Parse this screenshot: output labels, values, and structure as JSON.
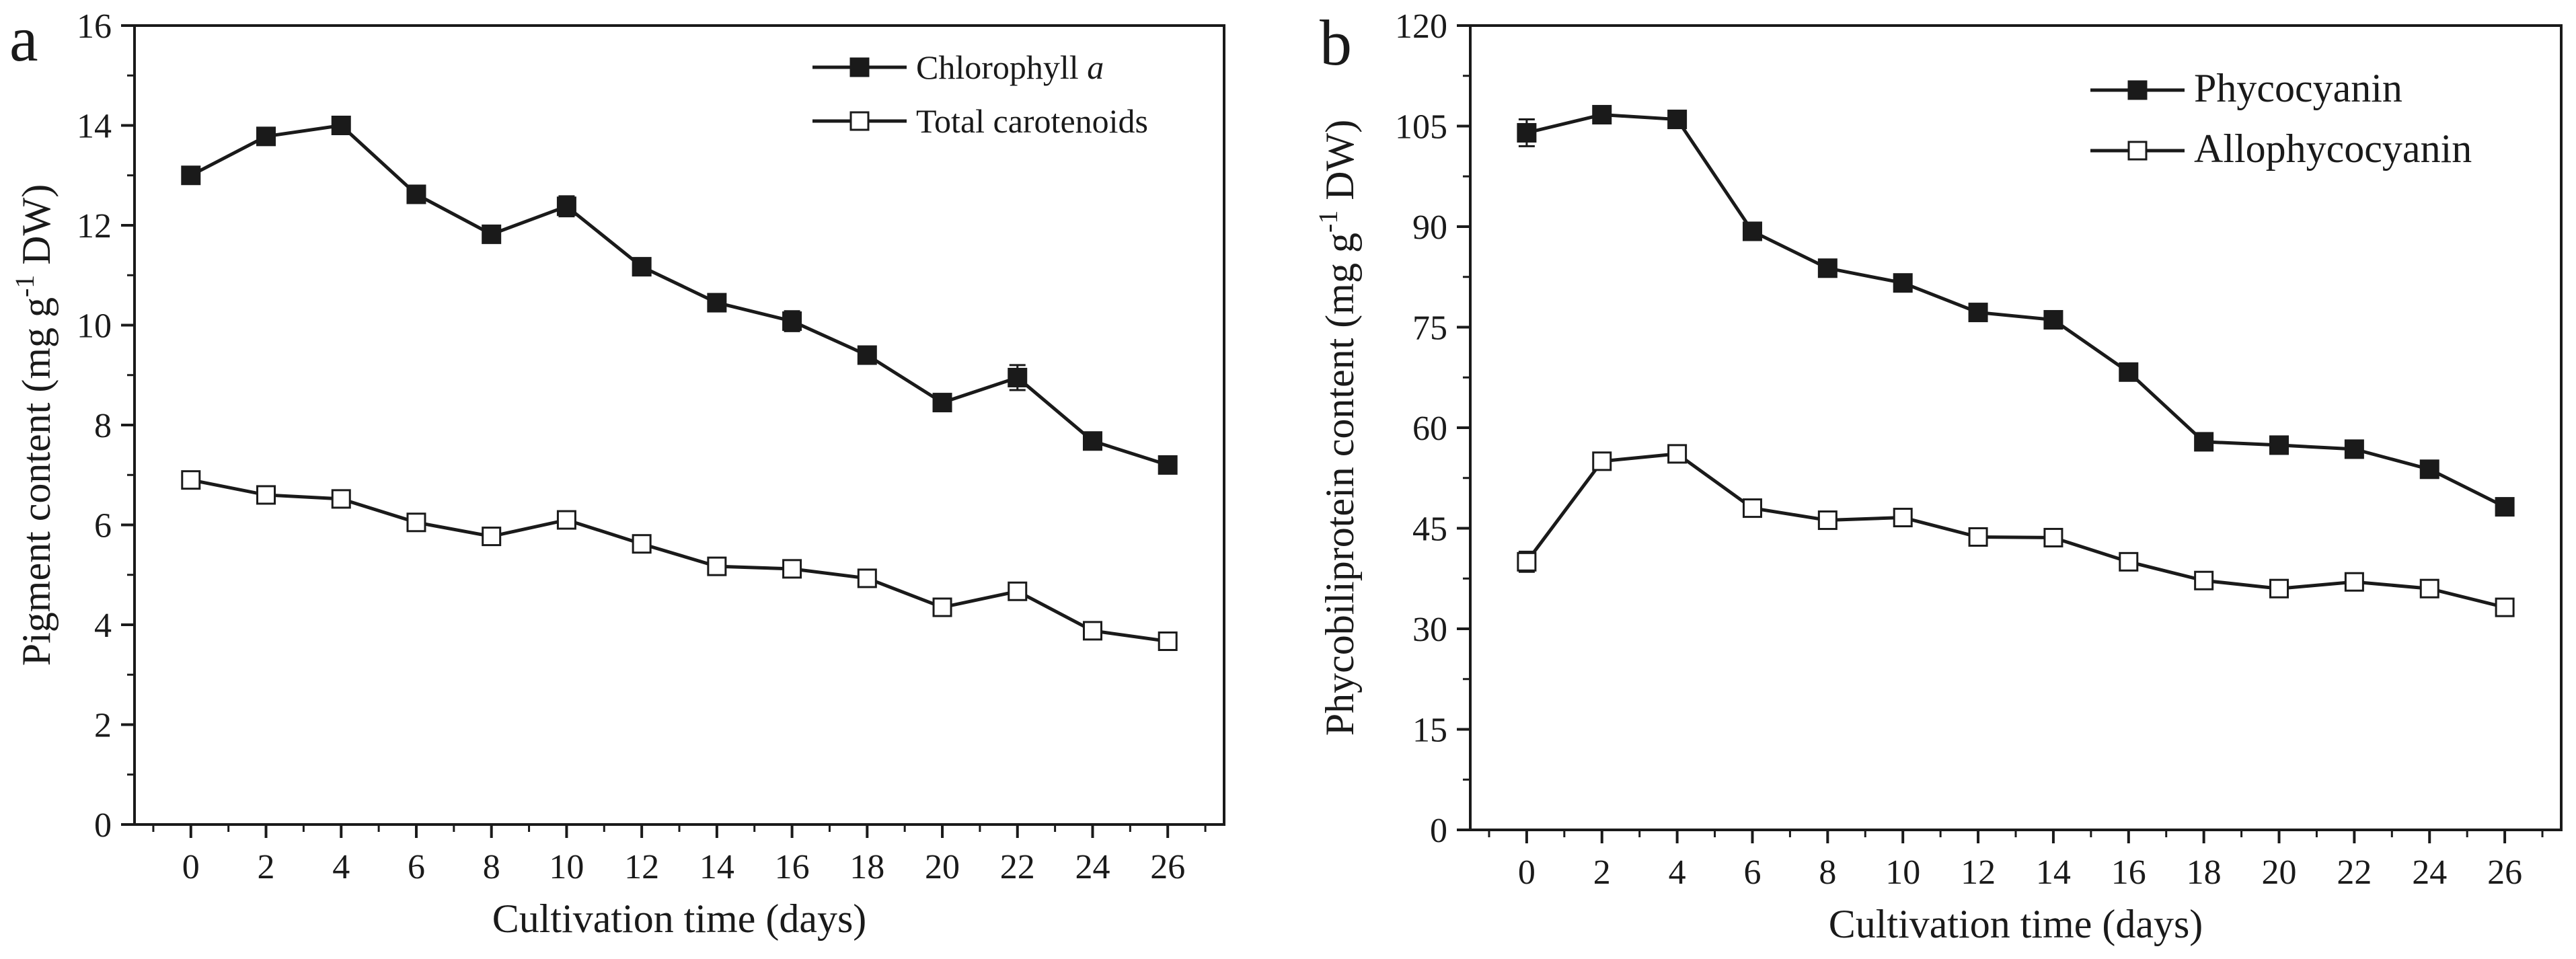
{
  "chart_data": [
    {
      "type": "line",
      "panel_label": "a",
      "xlabel": "Cultivation time (days)",
      "ylabel": "Pigment content (mg g",
      "ylabel_sup": "-1",
      "ylabel_tail": " DW)",
      "x": [
        0,
        2,
        4,
        6,
        8,
        10,
        12,
        14,
        16,
        18,
        20,
        22,
        24,
        26
      ],
      "xlim": [
        -1.5,
        27.5
      ],
      "ylim": [
        0,
        16
      ],
      "yticks": [
        0,
        2,
        4,
        6,
        8,
        10,
        12,
        14,
        16
      ],
      "xticks": [
        0,
        2,
        4,
        6,
        8,
        10,
        12,
        14,
        16,
        18,
        20,
        22,
        24,
        26
      ],
      "grid": false,
      "legend_position": "top-right",
      "series": [
        {
          "name": "Chlorophyll ",
          "name_italic": "a",
          "marker": "filled-square",
          "values": [
            13.0,
            13.78,
            14.0,
            12.62,
            11.82,
            12.38,
            11.17,
            10.45,
            10.08,
            9.4,
            8.45,
            8.95,
            7.68,
            7.2
          ],
          "errors": [
            0.05,
            0.08,
            0.15,
            0.05,
            0.05,
            0.2,
            0.05,
            0.05,
            0.2,
            0.1,
            0.08,
            0.25,
            0.05,
            0.05
          ]
        },
        {
          "name": "Total carotenoids",
          "marker": "open-square",
          "values": [
            6.9,
            6.6,
            6.52,
            6.05,
            5.77,
            6.1,
            5.62,
            5.17,
            5.12,
            4.93,
            4.35,
            4.67,
            3.88,
            3.67
          ],
          "errors": [
            0.1,
            0.1,
            0.1,
            0.05,
            0.08,
            0.08,
            0.1,
            0.1,
            0.08,
            0.05,
            0.1,
            0.08,
            0.1,
            0.08
          ]
        }
      ]
    },
    {
      "type": "line",
      "panel_label": "b",
      "xlabel": "Cultivation time (days)",
      "ylabel": "Phycobiliprotein content (mg g",
      "ylabel_sup": "-1",
      "ylabel_tail": " DW)",
      "x": [
        0,
        2,
        4,
        6,
        8,
        10,
        12,
        14,
        16,
        18,
        20,
        22,
        24,
        26
      ],
      "xlim": [
        -1.5,
        27.5
      ],
      "ylim": [
        0,
        120
      ],
      "yticks": [
        0,
        15,
        30,
        45,
        60,
        75,
        90,
        105,
        120
      ],
      "xticks": [
        0,
        2,
        4,
        6,
        8,
        10,
        12,
        14,
        16,
        18,
        20,
        22,
        24,
        26
      ],
      "grid": false,
      "legend_position": "top-right",
      "series": [
        {
          "name": "Phycocyanin",
          "marker": "filled-square",
          "values": [
            104.0,
            106.7,
            106.0,
            89.3,
            83.8,
            81.6,
            77.2,
            76.1,
            68.3,
            57.9,
            57.4,
            56.8,
            53.8,
            48.2
          ],
          "errors": [
            2.0,
            0.5,
            0.5,
            0.5,
            0.5,
            0.5,
            0.5,
            0.5,
            0.5,
            0.5,
            0.5,
            0.5,
            0.5,
            0.5
          ]
        },
        {
          "name": "Allophycocyanin",
          "marker": "open-square",
          "values": [
            40.0,
            55.0,
            56.1,
            48.0,
            46.2,
            46.6,
            43.7,
            43.6,
            40.0,
            37.2,
            36.0,
            37.0,
            36.0,
            33.2
          ],
          "errors": [
            1.5,
            1.0,
            1.0,
            1.0,
            1.0,
            1.0,
            1.0,
            1.0,
            1.0,
            1.0,
            1.0,
            1.0,
            1.0,
            1.0
          ]
        }
      ]
    }
  ]
}
